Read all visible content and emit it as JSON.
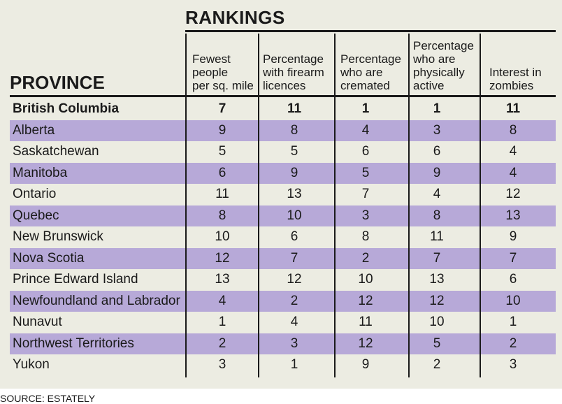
{
  "chart_data": {
    "type": "table",
    "title": "RANKINGS",
    "row_header": "PROVINCE",
    "columns": [
      "Fewest\npeople\nper sq. mile",
      "Percentage\nwith firearm\nlicences",
      "Percentage\nwho are\ncremated",
      "Percentage\nwho are\nphysically\nactive",
      "Interest in\nzombies"
    ],
    "rows": [
      {
        "province": "British Columbia",
        "values": [
          7,
          11,
          1,
          1,
          11
        ]
      },
      {
        "province": "Alberta",
        "values": [
          9,
          8,
          4,
          3,
          8
        ]
      },
      {
        "province": "Saskatchewan",
        "values": [
          5,
          5,
          6,
          6,
          4
        ]
      },
      {
        "province": "Manitoba",
        "values": [
          6,
          9,
          5,
          9,
          4
        ]
      },
      {
        "province": "Ontario",
        "values": [
          11,
          13,
          7,
          4,
          12
        ]
      },
      {
        "province": "Quebec",
        "values": [
          8,
          10,
          3,
          8,
          13
        ]
      },
      {
        "province": "New Brunswick",
        "values": [
          10,
          6,
          8,
          11,
          9
        ]
      },
      {
        "province": "Nova Scotia",
        "values": [
          12,
          7,
          2,
          7,
          7
        ]
      },
      {
        "province": "Prince Edward Island",
        "values": [
          13,
          12,
          10,
          13,
          6
        ]
      },
      {
        "province": "Newfoundland and Labrador",
        "values": [
          4,
          2,
          12,
          12,
          10
        ]
      },
      {
        "province": "Nunavut",
        "values": [
          1,
          4,
          11,
          10,
          1
        ]
      },
      {
        "province": "Northwest Territories",
        "values": [
          2,
          3,
          12,
          5,
          2
        ]
      },
      {
        "province": "Yukon",
        "values": [
          3,
          1,
          9,
          2,
          3
        ]
      }
    ],
    "highlighted_row": "British Columbia",
    "source": "SOURCE: ESTATELY"
  },
  "colors": {
    "background": "#ecece2",
    "shade": "#b7a9d8",
    "text": "#1a1a1a"
  }
}
